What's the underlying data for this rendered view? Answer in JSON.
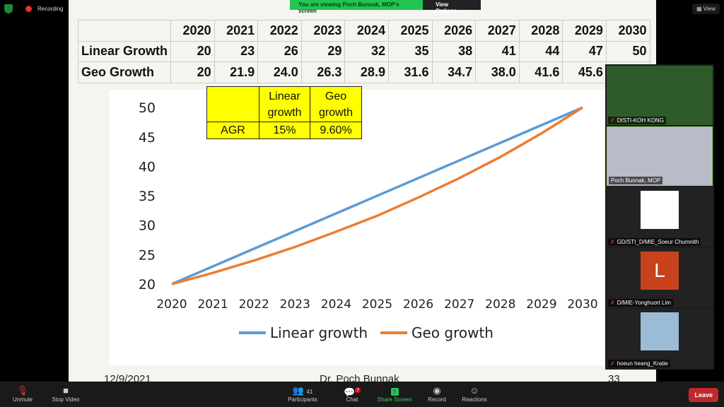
{
  "topbar": {
    "recording": "Recording",
    "banner": "You are viewing Poch Bunnak, MOP's screen",
    "view_options": "View Options",
    "view": "View"
  },
  "table": {
    "years": [
      "2020",
      "2021",
      "2022",
      "2023",
      "2024",
      "2025",
      "2026",
      "2027",
      "2028",
      "2029",
      "2030"
    ],
    "rows": [
      {
        "label": "Linear Growth",
        "values": [
          "20",
          "23",
          "26",
          "29",
          "32",
          "35",
          "38",
          "41",
          "44",
          "47",
          "50"
        ]
      },
      {
        "label": "Geo Growth",
        "values": [
          "20",
          "21.9",
          "24.0",
          "26.3",
          "28.9",
          "31.6",
          "34.7",
          "38.0",
          "41.6",
          "45.6",
          ""
        ]
      }
    ]
  },
  "agr_table": {
    "h1": "Linear growth",
    "h2": "Geo growth",
    "row_label": "AGR",
    "linear": "15%",
    "geo": "9.60%"
  },
  "chart_data": {
    "type": "line",
    "x": [
      2020,
      2021,
      2022,
      2023,
      2024,
      2025,
      2026,
      2027,
      2028,
      2029,
      2030
    ],
    "series": [
      {
        "name": "Linear growth",
        "color": "#5b9bd5",
        "values": [
          20,
          23,
          26,
          29,
          32,
          35,
          38,
          41,
          44,
          47,
          50
        ]
      },
      {
        "name": "Geo growth",
        "color": "#ed7d31",
        "values": [
          20,
          21.9,
          24.0,
          26.3,
          28.9,
          31.6,
          34.7,
          38.0,
          41.6,
          45.6,
          50
        ]
      }
    ],
    "yticks": [
      20,
      25,
      30,
      35,
      40,
      45,
      50
    ],
    "ylim": [
      20,
      50
    ],
    "legend": "bottom",
    "grid": false
  },
  "footer": {
    "date": "12/9/2021",
    "author": "Dr. Poch Bunnak",
    "page": "33"
  },
  "participants": [
    {
      "name": "DISTI-KOH KONG"
    },
    {
      "name": "Poch Bunnak, MOP"
    },
    {
      "name": "GD/STI_D/MIE_Soeur Chumnith"
    },
    {
      "name": "D/MIE-Yonghuort Lim",
      "initial": "L"
    },
    {
      "name": "hoeun heang_Kratie"
    }
  ],
  "toolbar": {
    "unmute": "Unmute",
    "stop_video": "Stop Video",
    "participants": "Participants",
    "participants_count": "41",
    "chat": "Chat",
    "chat_badge": "7",
    "share": "Share Screen",
    "record": "Record",
    "reactions": "Reactions",
    "leave": "Leave"
  }
}
